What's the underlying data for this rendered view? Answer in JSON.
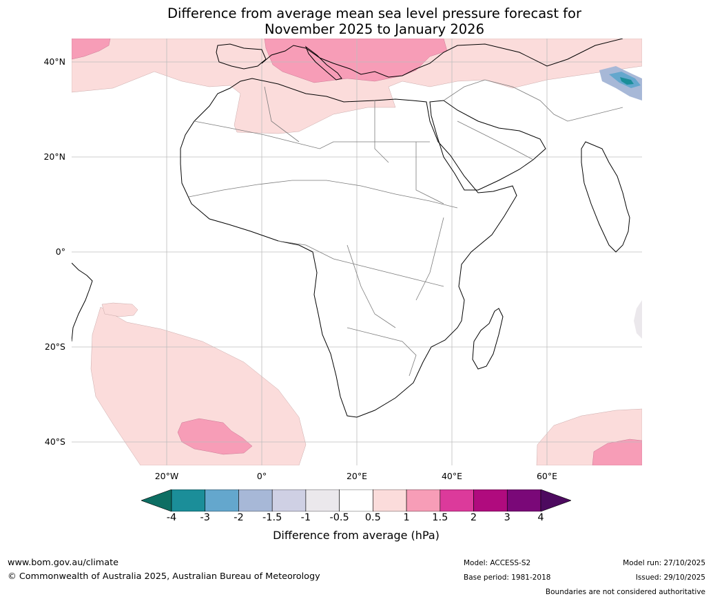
{
  "title": {
    "line1": "Difference from average mean sea level pressure forecast for",
    "line2": "November 2025 to January 2026"
  },
  "axes": {
    "lat_labels": [
      "40°N",
      "20°N",
      "0°",
      "20°S",
      "40°S"
    ],
    "lon_labels": [
      "20°W",
      "0°",
      "20°E",
      "40°E",
      "60°E"
    ]
  },
  "legend": {
    "ticks": [
      "-4",
      "-3",
      "-2",
      "-1.5",
      "-1",
      "-0.5",
      "0.5",
      "1",
      "1.5",
      "2",
      "3",
      "4"
    ],
    "colors": [
      "#0d6e63",
      "#1b8e99",
      "#64a7cd",
      "#a7b8d7",
      "#cfd0e4",
      "#ebe8ec",
      "#ffffff",
      "#fbdcdb",
      "#f79db7",
      "#dc3a9b",
      "#b00b7e",
      "#7a0878",
      "#4d0a5f"
    ],
    "label": "Difference from average (hPa)"
  },
  "footer": {
    "website": "www.bom.gov.au/climate",
    "copyright": "© Commonwealth of Australia 2025, Australian Bureau of Meteorology",
    "model": "Model: ACCESS-S2",
    "base_period": "Base period: 1981-2018",
    "model_run": "Model run: 27/10/2025",
    "issued": "Issued: 29/10/2025",
    "disclaimer": "Boundaries are not considered authoritative"
  }
}
